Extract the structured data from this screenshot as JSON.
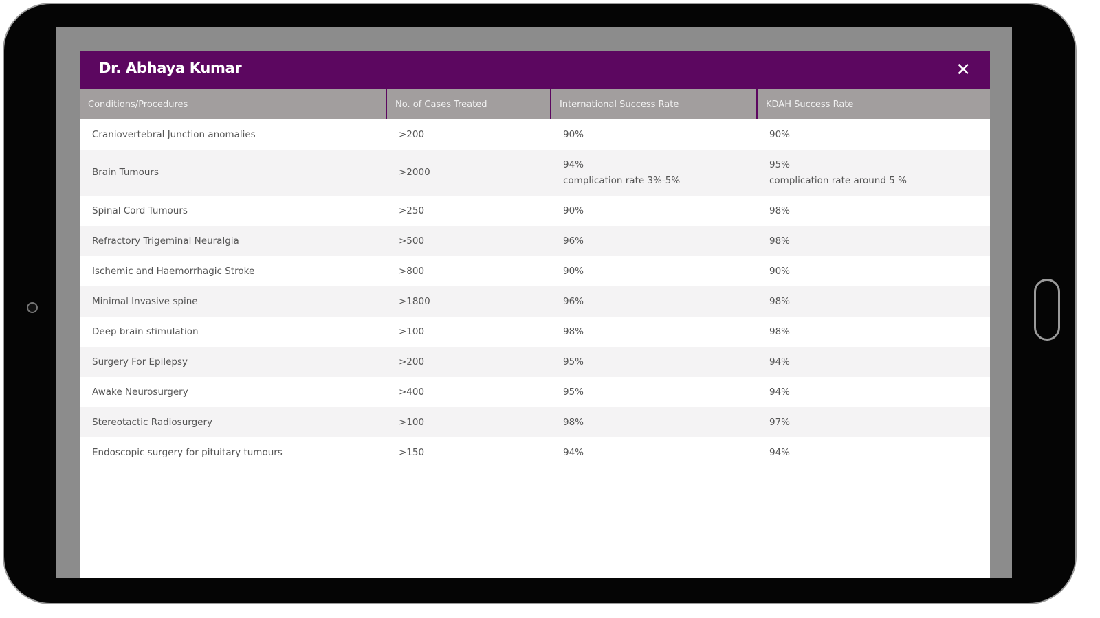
{
  "modal": {
    "title": "Dr. Abhaya Kumar",
    "close_icon": "close-icon"
  },
  "table": {
    "headers": [
      "Conditions/Procedures",
      "No. of Cases Treated",
      "International Success Rate",
      "KDAH Success Rate"
    ],
    "rows": [
      {
        "condition": "Craniovertebral Junction anomalies",
        "cases": ">200",
        "intl": "90%",
        "intl_note": "",
        "kdah": "90%",
        "kdah_note": ""
      },
      {
        "condition": "Brain Tumours",
        "cases": ">2000",
        "intl": "94%",
        "intl_note": "complication rate 3%-5%",
        "kdah": "95%",
        "kdah_note": "complication rate around 5 %"
      },
      {
        "condition": "Spinal Cord Tumours",
        "cases": ">250",
        "intl": "90%",
        "intl_note": "",
        "kdah": "98%",
        "kdah_note": ""
      },
      {
        "condition": "Refractory Trigeminal Neuralgia",
        "cases": ">500",
        "intl": "96%",
        "intl_note": "",
        "kdah": "98%",
        "kdah_note": ""
      },
      {
        "condition": "Ischemic and Haemorrhagic Stroke",
        "cases": ">800",
        "intl": "90%",
        "intl_note": "",
        "kdah": "90%",
        "kdah_note": ""
      },
      {
        "condition": "Minimal Invasive spine",
        "cases": ">1800",
        "intl": "96%",
        "intl_note": "",
        "kdah": "98%",
        "kdah_note": ""
      },
      {
        "condition": "Deep brain stimulation",
        "cases": ">100",
        "intl": "98%",
        "intl_note": "",
        "kdah": "98%",
        "kdah_note": ""
      },
      {
        "condition": "Surgery For Epilepsy",
        "cases": ">200",
        "intl": "95%",
        "intl_note": "",
        "kdah": "94%",
        "kdah_note": ""
      },
      {
        "condition": "Awake Neurosurgery",
        "cases": ">400",
        "intl": "95%",
        "intl_note": "",
        "kdah": "94%",
        "kdah_note": ""
      },
      {
        "condition": "Stereotactic Radiosurgery",
        "cases": ">100",
        "intl": "98%",
        "intl_note": "",
        "kdah": "97%",
        "kdah_note": ""
      },
      {
        "condition": "Endoscopic surgery for pituitary tumours",
        "cases": ">150",
        "intl": "94%",
        "intl_note": "",
        "kdah": "94%",
        "kdah_note": ""
      }
    ]
  },
  "colors": {
    "header": "#5c0760",
    "table_header": "#a29e9e",
    "overlay": "#8c8c8c"
  }
}
